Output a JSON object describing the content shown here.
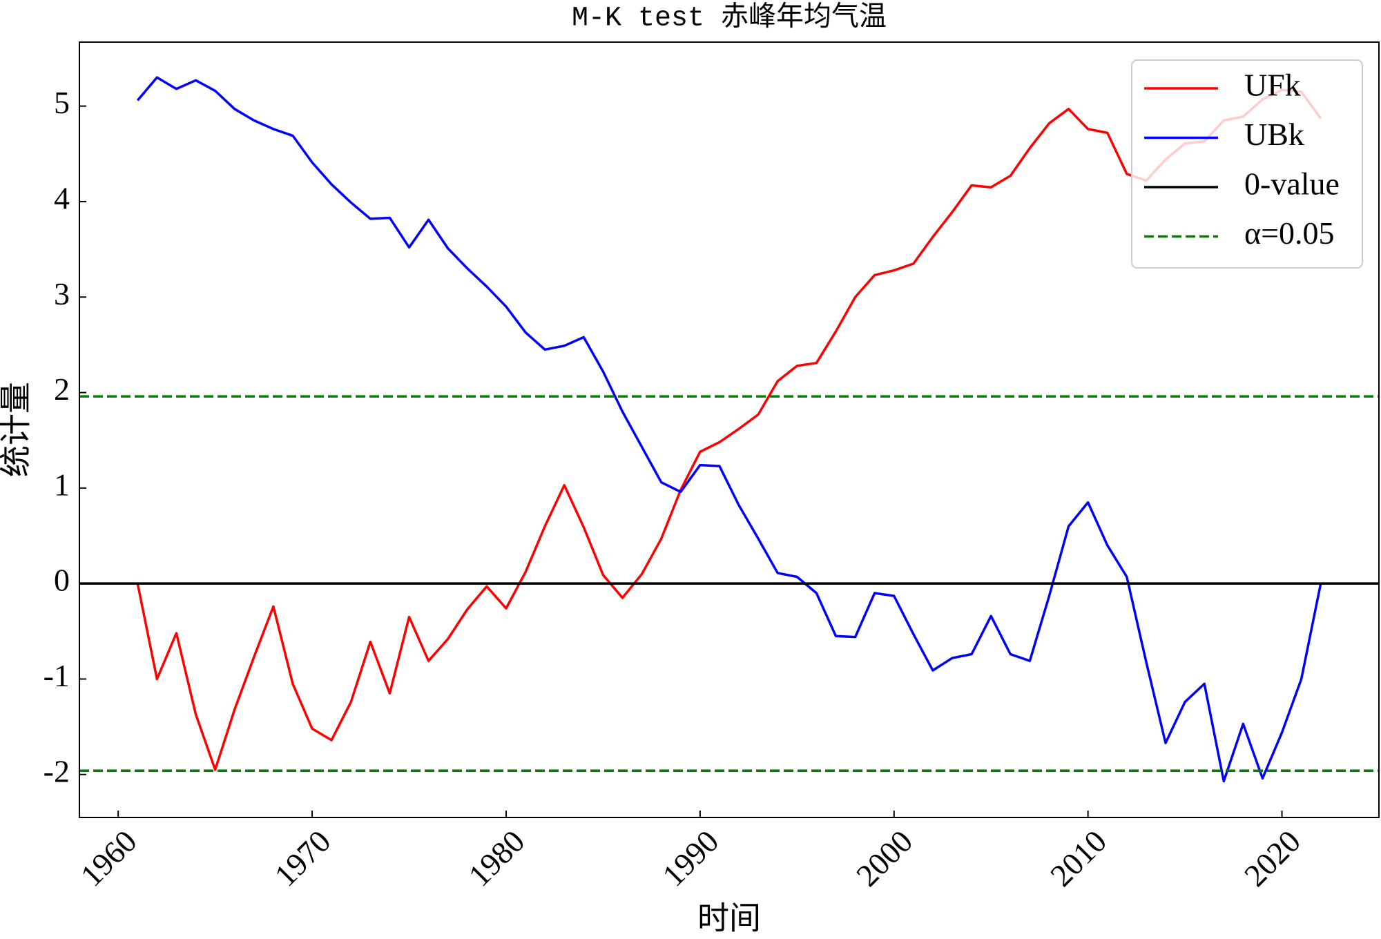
{
  "chart_data": {
    "type": "line",
    "title": "M-K test 赤峰年均气温",
    "x_label": "时间",
    "y_label": "统计量",
    "x": [
      1961,
      1962,
      1963,
      1964,
      1965,
      1966,
      1967,
      1968,
      1969,
      1970,
      1971,
      1972,
      1973,
      1974,
      1975,
      1976,
      1977,
      1978,
      1979,
      1980,
      1981,
      1982,
      1983,
      1984,
      1985,
      1986,
      1987,
      1988,
      1989,
      1990,
      1991,
      1992,
      1993,
      1994,
      1995,
      1996,
      1997,
      1998,
      1999,
      2000,
      2001,
      2002,
      2003,
      2004,
      2005,
      2006,
      2007,
      2008,
      2009,
      2010,
      2011,
      2012,
      2013,
      2014,
      2015,
      2016,
      2017,
      2018,
      2019,
      2020,
      2021,
      2022
    ],
    "series": [
      {
        "name": "UFk",
        "color": "#ff0000",
        "values": [
          0,
          -1.0,
          -0.52,
          -1.37,
          -1.95,
          -1.32,
          -0.77,
          -0.24,
          -1.05,
          -1.52,
          -1.64,
          -1.24,
          -0.61,
          -1.15,
          -0.35,
          -0.81,
          -0.58,
          -0.27,
          -0.03,
          -0.26,
          0.12,
          0.6,
          1.03,
          0.59,
          0.09,
          -0.15,
          0.1,
          0.47,
          0.98,
          1.38,
          1.48,
          1.62,
          1.77,
          2.12,
          2.28,
          2.31,
          2.64,
          3.0,
          3.23,
          3.28,
          3.35,
          3.63,
          3.89,
          4.17,
          4.15,
          4.27,
          4.56,
          4.82,
          4.97,
          4.76,
          4.72,
          4.29,
          4.22,
          4.44,
          4.61,
          4.63,
          4.85,
          4.89,
          5.07,
          5.17,
          5.15,
          4.87
        ]
      },
      {
        "name": "UBk",
        "color": "#0000ff",
        "values": [
          5.06,
          5.3,
          5.18,
          5.27,
          5.16,
          4.97,
          4.85,
          4.76,
          4.69,
          4.41,
          4.18,
          3.99,
          3.82,
          3.83,
          3.52,
          3.81,
          3.51,
          3.3,
          3.11,
          2.9,
          2.63,
          2.45,
          2.49,
          2.58,
          2.22,
          1.8,
          1.43,
          1.06,
          0.96,
          1.24,
          1.23,
          0.82,
          0.47,
          0.11,
          0.07,
          -0.1,
          -0.55,
          -0.56,
          -0.1,
          -0.13,
          -0.53,
          -0.91,
          -0.78,
          -0.74,
          -0.34,
          -0.74,
          -0.81,
          -0.13,
          0.6,
          0.85,
          0.4,
          0.07,
          -0.82,
          -1.67,
          -1.24,
          -1.05,
          -2.07,
          -1.47,
          -2.04,
          -1.56,
          -1.0,
          0
        ]
      }
    ],
    "reference_lines": [
      {
        "name": "0-value",
        "color": "#000000",
        "dashed": false,
        "values": [
          0
        ]
      },
      {
        "name": "α=0.05",
        "color": "#008000",
        "dashed": true,
        "values": [
          1.96,
          -1.96
        ]
      }
    ],
    "xlim": [
      1958,
      2025
    ],
    "ylim": [
      -2.45,
      5.67
    ],
    "xticks": [
      1960,
      1970,
      1980,
      1990,
      2000,
      2010,
      2020
    ],
    "yticks": [
      -2,
      -1,
      0,
      1,
      2,
      3,
      4,
      5
    ],
    "legend": "upper right",
    "grid": false
  }
}
